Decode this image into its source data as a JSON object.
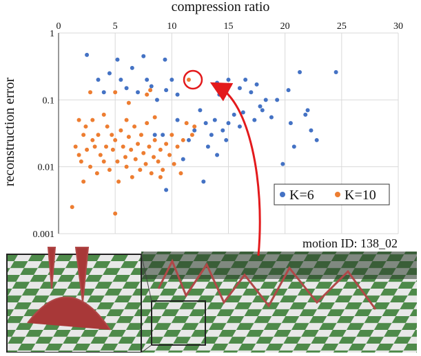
{
  "chart_data": {
    "type": "scatter",
    "x_label": "compression ratio",
    "y_label": "reconstruction error",
    "xlim": [
      0,
      30
    ],
    "xticks": [
      0,
      5,
      10,
      15,
      20,
      25,
      30
    ],
    "ylim": [
      0.001,
      1
    ],
    "yticks": [
      0.001,
      0.01,
      0.1,
      1
    ],
    "y_scale": "log",
    "grid": true,
    "legend": "lower right",
    "annotation": "motion ID: 138_02",
    "series": [
      {
        "name": "K=6",
        "color": "#4472c4",
        "x": [
          2.5,
          3.5,
          4.0,
          4.5,
          5.2,
          5.5,
          6,
          6.5,
          7,
          7.5,
          7.8,
          8.2,
          8.7,
          9.4,
          9.5,
          10.0,
          10.5,
          9.2,
          9.5,
          10.5,
          11,
          11.5,
          12,
          12.5,
          13,
          13.2,
          13.5,
          14,
          14.2,
          14.5,
          14.8,
          15,
          15.5,
          16,
          16.3,
          16.5,
          17,
          17.3,
          17.5,
          17.8,
          18,
          18.3,
          18.8,
          19.3,
          19.8,
          20.3,
          20.8,
          21.3,
          21.8,
          22,
          22.3,
          22.8,
          24.5,
          13.8,
          12.8,
          14,
          15,
          16,
          8.5,
          20.5
        ],
        "values": [
          0.47,
          0.2,
          0.13,
          0.25,
          0.4,
          0.2,
          0.15,
          0.3,
          0.13,
          0.45,
          0.2,
          0.16,
          0.1,
          0.4,
          0.14,
          0.2,
          0.12,
          0.03,
          0.0045,
          0.05,
          0.013,
          0.025,
          0.035,
          0.07,
          0.045,
          0.02,
          0.03,
          0.015,
          0.12,
          0.035,
          0.025,
          0.045,
          0.06,
          0.04,
          0.065,
          0.2,
          0.13,
          0.05,
          0.17,
          0.08,
          0.07,
          0.1,
          0.055,
          0.1,
          0.011,
          0.14,
          0.02,
          0.26,
          0.06,
          0.07,
          0.035,
          0.025,
          0.26,
          0.05,
          0.006,
          0.18,
          0.2,
          0.15,
          0.03,
          0.045
        ]
      },
      {
        "name": "K=10",
        "color": "#ed7d31",
        "x": [
          1.2,
          5.0,
          11.5,
          2.8,
          5.0,
          6.2,
          7.8,
          8.1,
          1.5,
          1.8,
          2.0,
          2.2,
          2.4,
          2.5,
          2.8,
          3.0,
          3.2,
          3.4,
          3.5,
          3.7,
          4.0,
          4.2,
          4.3,
          4.5,
          4.7,
          4.8,
          5.0,
          5.2,
          5.3,
          5.5,
          5.7,
          5.9,
          6.0,
          6.2,
          6.4,
          6.5,
          6.7,
          6.8,
          7.0,
          7.2,
          7.3,
          7.5,
          7.7,
          7.8,
          8.0,
          8.2,
          8.4,
          8.5,
          8.8,
          9.0,
          9.2,
          9.5,
          9.8,
          10.0,
          10.2,
          10.5,
          10.8,
          11.0,
          11.3,
          11.8,
          12.0,
          3.0,
          4.0,
          2.2,
          6.0,
          8.5,
          1.8,
          9.0
        ],
        "values": [
          0.0025,
          0.002,
          0.2,
          0.13,
          0.13,
          0.09,
          0.12,
          0.14,
          0.02,
          0.015,
          0.012,
          0.03,
          0.04,
          0.018,
          0.01,
          0.025,
          0.02,
          0.008,
          0.03,
          0.015,
          0.012,
          0.02,
          0.04,
          0.009,
          0.03,
          0.018,
          0.025,
          0.012,
          0.006,
          0.035,
          0.02,
          0.014,
          0.01,
          0.028,
          0.018,
          0.007,
          0.04,
          0.013,
          0.022,
          0.009,
          0.03,
          0.016,
          0.011,
          0.045,
          0.02,
          0.008,
          0.014,
          0.025,
          0.012,
          0.018,
          0.009,
          0.022,
          0.015,
          0.03,
          0.011,
          0.02,
          0.008,
          0.025,
          0.045,
          0.03,
          0.04,
          0.05,
          0.06,
          0.006,
          0.05,
          0.055,
          0.05,
          0.007
        ]
      }
    ]
  }
}
